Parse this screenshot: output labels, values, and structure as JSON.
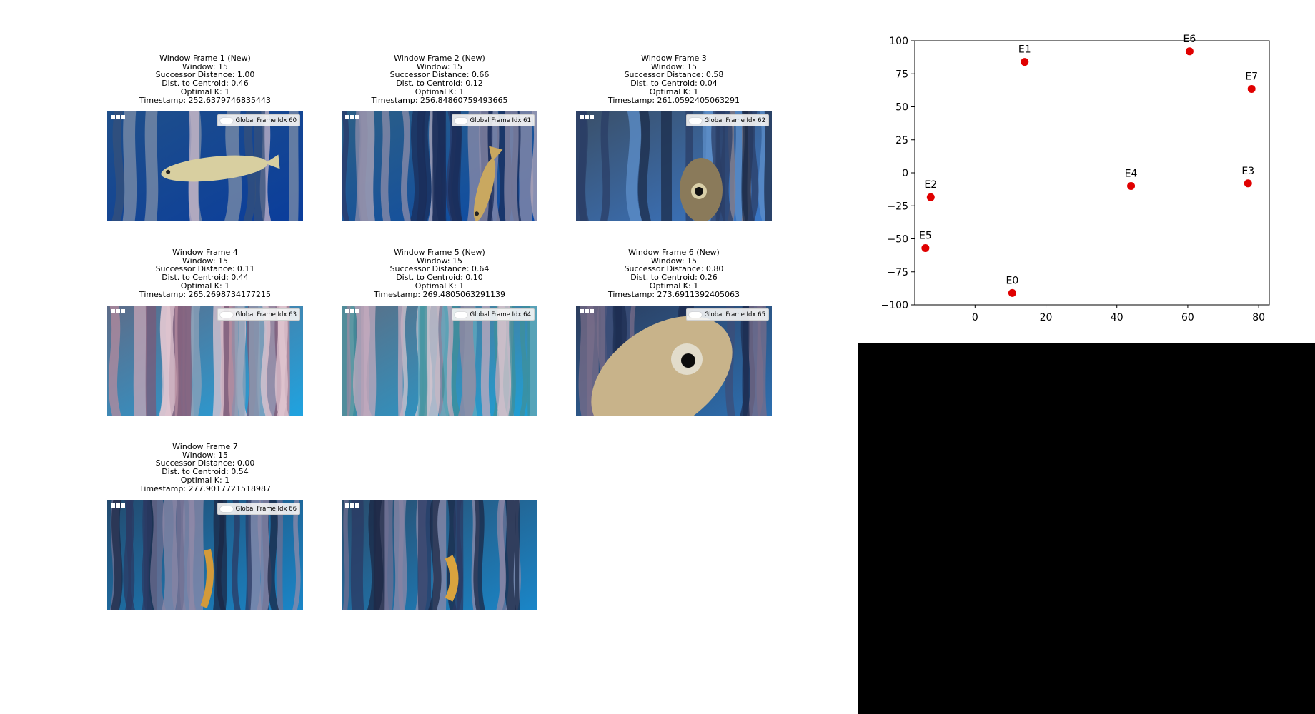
{
  "frames": [
    {
      "caption": [
        "Window Frame 1 (New)",
        "Window: 15",
        "Successor Distance: 1.00",
        "Dist. to Centroid: 0.46",
        "Optimal K: 1",
        "Timestamp: 252.6379746835443"
      ],
      "legend": "Global Frame Idx 60",
      "scene": "fish-swimming",
      "colors": {
        "top": "#1f4f8a",
        "bottom": "#0a3d9c"
      }
    },
    {
      "caption": [
        "Window Frame 2 (New)",
        "Window: 15",
        "Successor Distance: 0.66",
        "Dist. to Centroid: 0.12",
        "Optimal K: 1",
        "Timestamp: 256.84860759493665"
      ],
      "legend": "Global Frame Idx 61",
      "scene": "fish-vertical",
      "colors": {
        "top": "#2c5f86",
        "bottom": "#0b4aa6"
      }
    },
    {
      "caption": [
        "Window Frame 3",
        "Window: 15",
        "Successor Distance: 0.58",
        "Dist. to Centroid: 0.04",
        "Optimal K: 1",
        "Timestamp: 261.0592405063291"
      ],
      "legend": "Global Frame Idx 62",
      "scene": "fish-eye-tentacles",
      "colors": {
        "top": "#3a4f68",
        "bottom": "#3a78c9"
      }
    },
    {
      "caption": [
        "Window Frame 4",
        "Window: 15",
        "Successor Distance: 0.11",
        "Dist. to Centroid: 0.44",
        "Optimal K: 1",
        "Timestamp: 265.2698734177215"
      ],
      "legend": "Global Frame Idx 63",
      "scene": "tentacles-pink",
      "colors": {
        "top": "#5e6c88",
        "bottom": "#1fa3e0"
      }
    },
    {
      "caption": [
        "Window Frame 5 (New)",
        "Window: 15",
        "Successor Distance: 0.64",
        "Dist. to Centroid: 0.10",
        "Optimal K: 1",
        "Timestamp: 269.4805063291139"
      ],
      "legend": "Global Frame Idx 64",
      "scene": "tentacles-teal",
      "colors": {
        "top": "#5b6f86",
        "bottom": "#1e9fd6"
      }
    },
    {
      "caption": [
        "Window Frame 6 (New)",
        "Window: 15",
        "Successor Distance: 0.80",
        "Dist. to Centroid: 0.26",
        "Optimal K: 1",
        "Timestamp: 273.6911392405063"
      ],
      "legend": "Global Frame Idx 65",
      "scene": "fish-closeup",
      "colors": {
        "top": "#2b3c5c",
        "bottom": "#2d6fb0"
      }
    },
    {
      "caption": [
        "Window Frame 7",
        "Window: 15",
        "Successor Distance: 0.00",
        "Dist. to Centroid: 0.54",
        "Optimal K: 1",
        "Timestamp: 277.9017721518987"
      ],
      "legend": "Global Frame Idx 66",
      "scene": "tentacles-dark",
      "colors": {
        "top": "#234a6e",
        "bottom": "#1a86c8"
      }
    },
    {
      "caption": [],
      "legend": "",
      "scene": "tentacles-dark-2",
      "colors": {
        "top": "#2a4b6b",
        "bottom": "#1a86c8"
      }
    }
  ],
  "chart_data": {
    "type": "scatter",
    "title": "",
    "xlabel": "",
    "ylabel": "",
    "xlim": [
      -17,
      83
    ],
    "ylim": [
      -100,
      100
    ],
    "xticks": [
      0,
      20,
      40,
      60,
      80
    ],
    "yticks": [
      100,
      75,
      50,
      25,
      0,
      -25,
      -50,
      -75,
      -100
    ],
    "grid": false,
    "marker_color": "#e00000",
    "points": [
      {
        "label": "E0",
        "x": 10.5,
        "y": -91
      },
      {
        "label": "E1",
        "x": 14,
        "y": 84
      },
      {
        "label": "E2",
        "x": -12.5,
        "y": -18.5
      },
      {
        "label": "E3",
        "x": 77,
        "y": -8
      },
      {
        "label": "E4",
        "x": 44,
        "y": -10
      },
      {
        "label": "E5",
        "x": -14,
        "y": -57
      },
      {
        "label": "E6",
        "x": 60.5,
        "y": 92
      },
      {
        "label": "E7",
        "x": 78,
        "y": 63.5
      }
    ]
  },
  "colors": {
    "panel_black": "#000000",
    "background": "#ffffff"
  }
}
